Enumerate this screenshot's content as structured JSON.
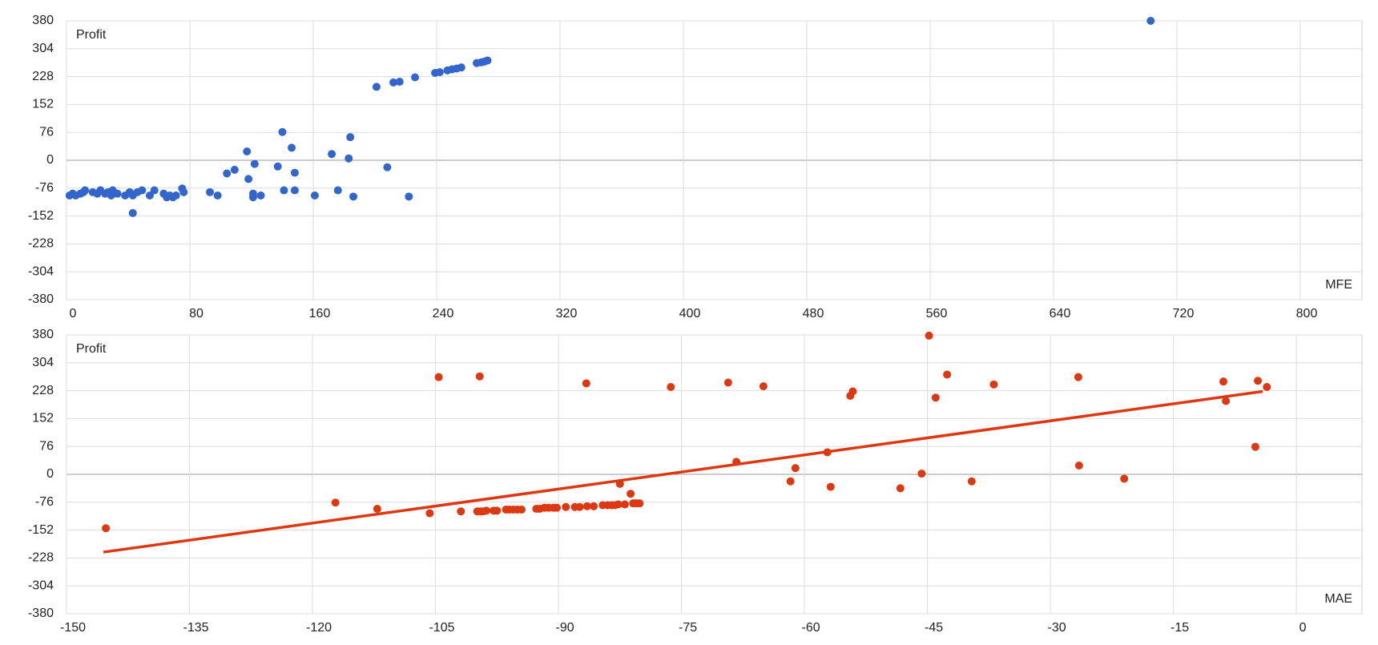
{
  "chart_data": [
    {
      "type": "scatter",
      "y_label": "Profit",
      "x_label": "MFE",
      "color": "#3366cc",
      "grid": true,
      "xlim": [
        0,
        840
      ],
      "xticks": [
        0,
        80,
        160,
        240,
        320,
        400,
        480,
        560,
        640,
        720,
        800
      ],
      "ylim": [
        -380,
        380
      ],
      "yticks": [
        -380,
        -304,
        -228,
        -152,
        -76,
        0,
        76,
        152,
        228,
        304,
        380
      ],
      "x": [
        2,
        4,
        6,
        9,
        11,
        12,
        17,
        20,
        22,
        25,
        27,
        29,
        30,
        33,
        38,
        41,
        43,
        43,
        46,
        49,
        54,
        57,
        63,
        65,
        67,
        69,
        71,
        75,
        76,
        93,
        98,
        104,
        109,
        117,
        118,
        121,
        121,
        122,
        126,
        137,
        140,
        141,
        146,
        148,
        148,
        161,
        172,
        176,
        183,
        184,
        186,
        208,
        222,
        201,
        212,
        216,
        226,
        239,
        242,
        247,
        250,
        253,
        256,
        266,
        269,
        271,
        273,
        703
      ],
      "y": [
        -96,
        -91,
        -96,
        -91,
        -87,
        -82,
        -87,
        -91,
        -82,
        -91,
        -87,
        -96,
        -82,
        -91,
        -96,
        -87,
        -96,
        -144,
        -87,
        -82,
        -96,
        -82,
        -91,
        -101,
        -96,
        -101,
        -96,
        -77,
        -87,
        -87,
        -96,
        -36,
        -26,
        24,
        -51,
        -101,
        -91,
        -10,
        -96,
        -17,
        77,
        -82,
        34,
        -34,
        -82,
        -96,
        17,
        -82,
        5,
        63,
        -99,
        -19,
        -99,
        200,
        212,
        214,
        226,
        238,
        240,
        245,
        248,
        250,
        253,
        265,
        267,
        269,
        272,
        380
      ]
    },
    {
      "type": "scatter",
      "y_label": "Profit",
      "x_label": "MAE",
      "color": "#dc3912",
      "grid": true,
      "xlim": [
        -150,
        8
      ],
      "xticks": [
        -150,
        -135,
        -120,
        -105,
        -90,
        -75,
        -60,
        -45,
        -30,
        -15,
        0
      ],
      "ylim": [
        -380,
        380
      ],
      "yticks": [
        -380,
        -304,
        -228,
        -152,
        -76,
        0,
        76,
        152,
        228,
        304,
        380
      ],
      "x": [
        -145.2,
        -117.2,
        -112.1,
        -105.7,
        -104.6,
        -101.9,
        -99.9,
        -99.5,
        -99.2,
        -98.8,
        -97.9,
        -97.5,
        -96.4,
        -96.0,
        -95.5,
        -95.0,
        -94.5,
        -99.6,
        -92.7,
        -92.3,
        -91.7,
        -91.2,
        -90.6,
        -90.2,
        -89.1,
        -88.0,
        -87.4,
        -86.5,
        -85.7,
        -84.6,
        -84.0,
        -83.5,
        -83.1,
        -82.7,
        -81.9,
        -80.9,
        -80.5,
        -80.1,
        -82.5,
        -81.2,
        -86.6,
        -76.3,
        -69.3,
        -68.3,
        -65.0,
        -61.7,
        -61.1,
        -57.2,
        -56.8,
        -54.4,
        -54.1,
        -48.3,
        -45.7,
        -44.8,
        -44.0,
        -42.6,
        -39.6,
        -36.9,
        -26.6,
        -26.5,
        -21.0,
        -8.9,
        -8.6,
        -5.0,
        -4.7,
        -3.6
      ],
      "y": [
        -147,
        -77,
        -94,
        -106,
        265,
        -101,
        -101,
        -101,
        -101,
        -99,
        -99,
        -99,
        -96,
        -96,
        -96,
        -96,
        -96,
        267,
        -94,
        -94,
        -91,
        -91,
        -91,
        -91,
        -89,
        -89,
        -89,
        -87,
        -87,
        -84,
        -84,
        -84,
        -84,
        -82,
        -82,
        -79,
        -79,
        -79,
        -26,
        -53,
        248,
        238,
        250,
        34,
        240,
        -19,
        17,
        60,
        -34,
        214,
        226,
        -38,
        2,
        378,
        209,
        272,
        -19,
        245,
        265,
        24,
        -12,
        253,
        200,
        75,
        255,
        238
      ],
      "trendline": {
        "x": [
          -145.5,
          -4.1
        ],
        "y": [
          -212,
          226
        ]
      }
    }
  ]
}
